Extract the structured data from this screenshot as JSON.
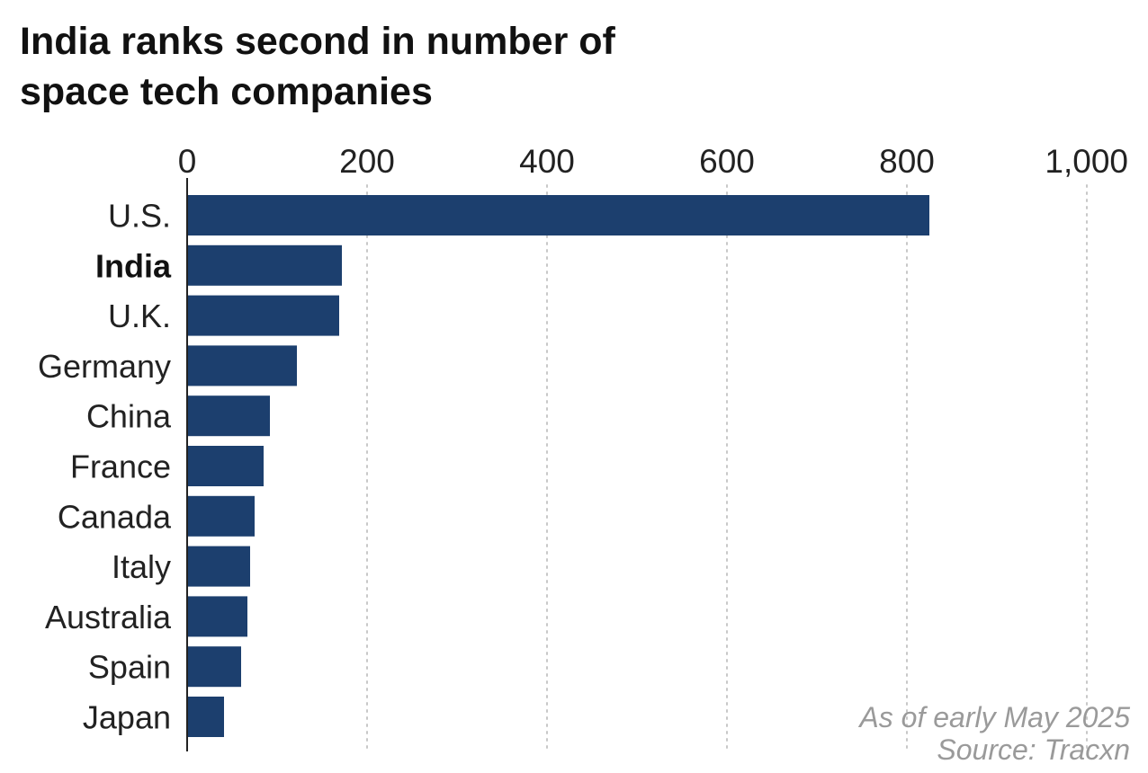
{
  "title_lines": [
    "India ranks second in number of",
    "space tech companies"
  ],
  "note": "As of early May 2025",
  "source": "Source: Tracxn",
  "colors": {
    "bar": "#1c3f6e",
    "grid": "#c8c8c8",
    "axis": "#222222"
  },
  "chart_data": {
    "type": "bar",
    "orientation": "horizontal",
    "title": "India ranks second in number of space tech companies",
    "categories": [
      "U.S.",
      "India",
      "U.K.",
      "Germany",
      "China",
      "France",
      "Canada",
      "Italy",
      "Australia",
      "Spain",
      "Japan"
    ],
    "values": [
      825,
      172,
      169,
      122,
      92,
      85,
      75,
      70,
      67,
      60,
      41
    ],
    "highlight_category": "India",
    "xlim": [
      0,
      1000
    ],
    "xticks": [
      0,
      200,
      400,
      600,
      800,
      1000
    ],
    "xtick_labels": [
      "0",
      "200",
      "400",
      "600",
      "800",
      "1,000"
    ],
    "grid": "vertical-dotted",
    "xlabel": "",
    "ylabel": ""
  }
}
